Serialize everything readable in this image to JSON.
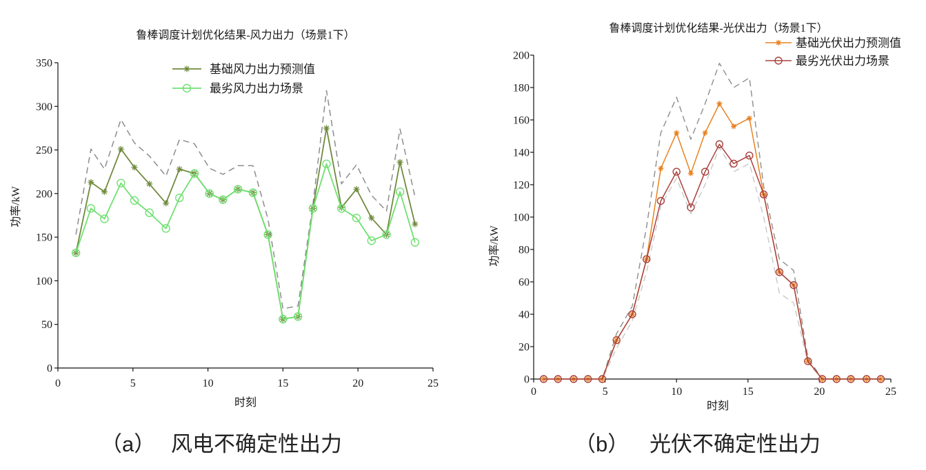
{
  "chart_data": [
    {
      "type": "line",
      "title": "鲁棒调度计划优化结果-风力出力（场景1下）",
      "xlabel": "时刻",
      "ylabel": "功率/kW",
      "xlim": [
        0,
        25
      ],
      "ylim": [
        0,
        350
      ],
      "xticks": [
        0,
        5,
        10,
        15,
        20,
        25
      ],
      "yticks": [
        0,
        50,
        100,
        150,
        200,
        250,
        300,
        350
      ],
      "grid": false,
      "legend_position": "top-center",
      "series": [
        {
          "name": "基础风力出力预测值",
          "color": "#6f8a3c",
          "marker": "asterisk",
          "dashed": false,
          "x": [
            1.2,
            2.2,
            3.1,
            4.2,
            5.1,
            6.1,
            7.2,
            8.1,
            9.1,
            10.1,
            11,
            12,
            13,
            14,
            15,
            16,
            17,
            17.9,
            18.9,
            19.9,
            20.9,
            21.9,
            22.8,
            23.8
          ],
          "y": [
            132,
            213,
            202,
            251,
            230,
            211,
            189,
            228,
            223,
            200,
            193,
            205,
            201,
            153,
            56,
            59,
            183,
            275,
            184,
            205,
            172,
            153,
            236,
            165
          ]
        },
        {
          "name": "最劣风力出力场景",
          "color": "#6fe070",
          "marker": "circle",
          "dashed": false,
          "x": [
            1.2,
            2.2,
            3.1,
            4.2,
            5.1,
            6.1,
            7.2,
            8.1,
            9.1,
            10.1,
            11,
            12,
            13,
            14,
            15,
            16,
            17,
            17.9,
            18.9,
            19.9,
            20.9,
            21.9,
            22.8,
            23.8
          ],
          "y": [
            132,
            183,
            171,
            212,
            192,
            178,
            160,
            195,
            223,
            200,
            193,
            205,
            201,
            153,
            56,
            59,
            183,
            234,
            183,
            172,
            146,
            153,
            202,
            144
          ]
        },
        {
          "color": "#8c8c8c",
          "marker": null,
          "dashed": true,
          "x": [
            1.2,
            2.2,
            3.1,
            4.2,
            5.1,
            6.1,
            7.2,
            8.1,
            9.1,
            10.1,
            11,
            12,
            13,
            14,
            15,
            16,
            17,
            17.9,
            18.9,
            19.9,
            20.9,
            21.9,
            22.8,
            23.8
          ],
          "y": [
            153,
            251,
            228,
            285,
            258,
            243,
            220,
            262,
            257,
            229,
            222,
            232,
            232,
            171,
            68,
            71,
            188,
            318,
            211,
            233,
            198,
            180,
            274,
            196
          ]
        }
      ]
    },
    {
      "type": "line",
      "title": "鲁棒调度计划优化结果-光伏出力（场景1下）",
      "xlabel": "时刻",
      "ylabel": "功率/kW",
      "xlim": [
        0,
        25
      ],
      "ylim": [
        0,
        200
      ],
      "xticks": [
        0,
        5,
        10,
        15,
        20,
        25
      ],
      "yticks": [
        0,
        20,
        40,
        60,
        80,
        100,
        120,
        140,
        160,
        180,
        200
      ],
      "grid": false,
      "legend_position": "top-right",
      "series": [
        {
          "name": "基础光伏出力预测值",
          "color": "#e8811e",
          "marker": "asterisk",
          "dashed": false,
          "x": [
            0.7,
            1.7,
            2.8,
            3.8,
            4.8,
            5.8,
            6.9,
            7.9,
            8.9,
            10,
            11,
            12,
            13,
            14,
            15.1,
            16.1,
            17.2,
            18.2,
            19.2,
            20.2,
            21.2,
            22.2,
            23.3,
            24.3
          ],
          "y": [
            0,
            0,
            0,
            0,
            0,
            24,
            40,
            74,
            130,
            152,
            127,
            152,
            170,
            156,
            161,
            114,
            66,
            58,
            11,
            0,
            0,
            0,
            0,
            0
          ]
        },
        {
          "name": "最劣光伏出力场景",
          "color": "#a9403a",
          "marker": "circle",
          "dashed": false,
          "x": [
            0.7,
            1.7,
            2.8,
            3.8,
            4.8,
            5.8,
            6.9,
            7.9,
            8.9,
            10,
            11,
            12,
            13,
            14,
            15.1,
            16.1,
            17.2,
            18.2,
            19.2,
            20.2,
            21.2,
            22.2,
            23.3,
            24.3
          ],
          "y": [
            0,
            0,
            0,
            0,
            0,
            24,
            40,
            74,
            110,
            128,
            106,
            128,
            145,
            133,
            138,
            114,
            66,
            58,
            11,
            0,
            0,
            0,
            0,
            0
          ]
        },
        {
          "color": "#8c8c8c",
          "marker": null,
          "dashed": true,
          "x": [
            0.7,
            1.7,
            2.8,
            3.8,
            4.8,
            5.8,
            6.9,
            7.9,
            8.9,
            10,
            11,
            12,
            13,
            14,
            15.1,
            16.1,
            17.2,
            18.2,
            19.2,
            20.2,
            21.2,
            22.2,
            23.3,
            24.3
          ],
          "y": [
            0,
            0,
            0,
            0,
            0,
            28,
            45,
            94,
            152,
            174,
            148,
            170,
            195,
            180,
            186,
            119,
            74,
            67,
            13,
            0,
            0,
            0,
            0,
            0
          ]
        },
        {
          "color": "#c8c8c8",
          "marker": null,
          "dashed": true,
          "x": [
            0.7,
            1.7,
            2.8,
            3.8,
            4.8,
            5.8,
            6.9,
            7.9,
            8.9,
            10,
            11,
            12,
            13,
            14,
            15.1,
            16.1,
            17.2,
            18.2,
            19.2,
            20.2,
            21.2,
            22.2,
            23.3,
            24.3
          ],
          "y": [
            0,
            0,
            0,
            0,
            0,
            19,
            36,
            66,
            107,
            124,
            102,
            120,
            143,
            128,
            133,
            100,
            53,
            47,
            10,
            0,
            0,
            0,
            0,
            0
          ]
        }
      ]
    }
  ],
  "captions": [
    {
      "label": "（a）",
      "text": "风电不确定性出力"
    },
    {
      "label": "（b）",
      "text": "光伏不确定性出力"
    }
  ]
}
